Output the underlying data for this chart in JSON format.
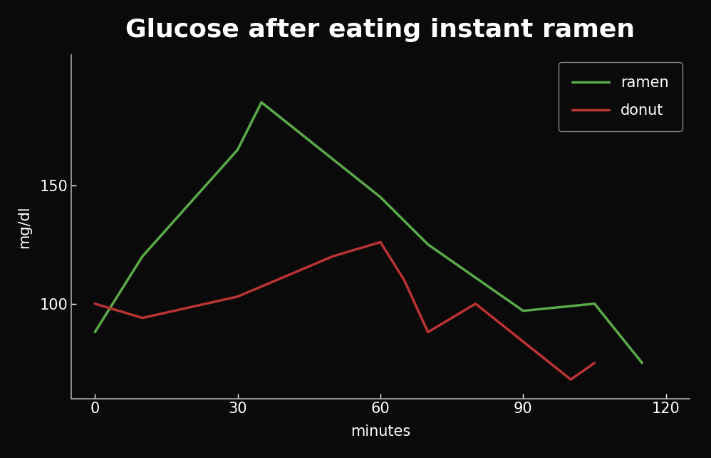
{
  "title": "Glucose after eating instant ramen",
  "xlabel": "minutes",
  "ylabel": "mg/dl",
  "background_color": "#0a0a0a",
  "text_color": "#ffffff",
  "ramen": {
    "x": [
      0,
      10,
      30,
      35,
      60,
      70,
      90,
      105,
      115
    ],
    "y": [
      88,
      120,
      165,
      185,
      145,
      125,
      97,
      100,
      75
    ],
    "color": "#5aaa4a",
    "label": "ramen",
    "linewidth": 2.5
  },
  "donut": {
    "x": [
      0,
      10,
      30,
      50,
      60,
      65,
      70,
      80,
      100,
      105
    ],
    "y": [
      100,
      94,
      103,
      120,
      126,
      110,
      88,
      100,
      68,
      75
    ],
    "color": "#bb3333",
    "label": "donut",
    "linewidth": 2.5
  },
  "xlim": [
    -5,
    125
  ],
  "ylim": [
    60,
    205
  ],
  "xticks": [
    0,
    30,
    60,
    90,
    120
  ],
  "yticks": [
    100,
    150
  ],
  "title_fontsize": 26,
  "label_fontsize": 15,
  "tick_fontsize": 15,
  "legend_fontsize": 15,
  "legend_edgecolor": "#888888",
  "legend_facecolor": "#0a0a0a"
}
